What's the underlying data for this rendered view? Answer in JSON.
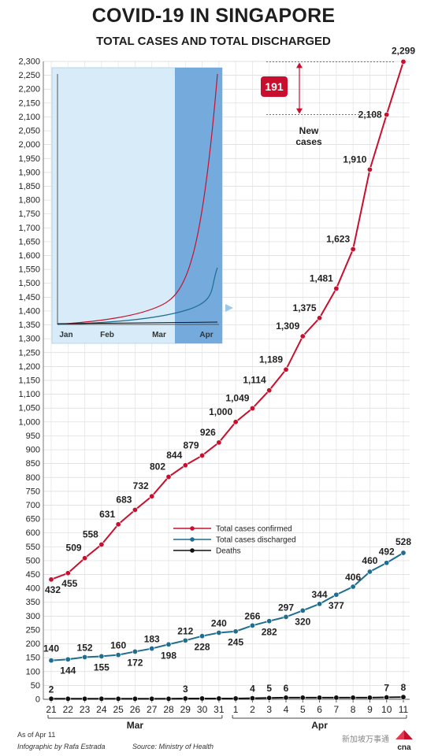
{
  "title": "COVID-19 IN SINGAPORE",
  "subtitle": "TOTAL CASES AND TOTAL DISCHARGED",
  "footer": {
    "as_of": "As of Apr 11",
    "infographic_by": "Infographic by Rafa Estrada",
    "source": "Source: Ministry of Health",
    "watermark": "新加坡万事通",
    "logo_text": "cna"
  },
  "callout": {
    "new_cases_value": "191",
    "new_cases_label_1": "New",
    "new_cases_label_2": "cases"
  },
  "colors": {
    "confirmed": "#c8102e",
    "discharged": "#1f6d8f",
    "deaths": "#111111",
    "inset_bg": "#d7ecf8",
    "inset_highlight": "#5b9bd5",
    "callout_box": "#c8102e"
  },
  "chart_data": {
    "type": "line",
    "title": "COVID-19 IN SINGAPORE",
    "subtitle": "TOTAL CASES AND TOTAL DISCHARGED",
    "x": [
      "21",
      "22",
      "23",
      "24",
      "25",
      "26",
      "27",
      "28",
      "29",
      "30",
      "31",
      "1",
      "2",
      "3",
      "4",
      "5",
      "6",
      "7",
      "8",
      "9",
      "10",
      "11"
    ],
    "month_groups": [
      {
        "label": "Mar",
        "from": "21",
        "to": "31"
      },
      {
        "label": "Apr",
        "from": "1",
        "to": "11"
      }
    ],
    "ylim": [
      0,
      2300
    ],
    "ystep": 50,
    "y_tick_labels": [
      "0",
      "50",
      "100",
      "150",
      "200",
      "250",
      "300",
      "350",
      "400",
      "450",
      "500",
      "550",
      "600",
      "650",
      "700",
      "750",
      "800",
      "850",
      "900",
      "950",
      "1,000",
      "1,050",
      "1,100",
      "1,150",
      "1,200",
      "1,250",
      "1,300",
      "1,350",
      "1,400",
      "1,450",
      "1,500",
      "1,550",
      "1,600",
      "1,650",
      "1,700",
      "1,750",
      "1,800",
      "1,850",
      "1,900",
      "1,950",
      "2,000",
      "2,050",
      "2,100",
      "2,150",
      "2,200",
      "2,250",
      "2,300"
    ],
    "grid": true,
    "legend_position": "center-right",
    "series": [
      {
        "name": "Total cases confirmed",
        "color": "#c8102e",
        "values": [
          432,
          455,
          509,
          558,
          631,
          683,
          732,
          802,
          844,
          879,
          926,
          1000,
          1049,
          1114,
          1189,
          1309,
          1375,
          1481,
          1623,
          1910,
          2108,
          2299
        ],
        "labels": [
          "432",
          "455",
          "509",
          "558",
          "631",
          "683",
          "732",
          "802",
          "844",
          "879",
          "926",
          "1,000",
          "1,049",
          "1,114",
          "1,189",
          "1,309",
          "1,375",
          "1,481",
          "1,623",
          "1,910",
          "2,108",
          "2,299"
        ]
      },
      {
        "name": "Total cases discharged",
        "color": "#1f6d8f",
        "values": [
          140,
          144,
          152,
          155,
          160,
          172,
          183,
          198,
          212,
          228,
          240,
          245,
          266,
          282,
          297,
          320,
          344,
          377,
          406,
          460,
          492,
          528
        ],
        "labels": [
          "140",
          "144",
          "152",
          "155",
          "160",
          "172",
          "183",
          "198",
          "212",
          "228",
          "240",
          "245",
          "266",
          "282",
          "297",
          "320",
          "344",
          "377",
          "406",
          "460",
          "492",
          "528"
        ]
      },
      {
        "name": "Deaths",
        "color": "#111111",
        "values": [
          2,
          2,
          2,
          2,
          2,
          2,
          2,
          2,
          3,
          3,
          3,
          3,
          4,
          5,
          6,
          6,
          6,
          6,
          6,
          6,
          7,
          8
        ],
        "labels": [
          "2",
          "",
          "",
          "",
          "",
          "",
          "",
          "",
          "3",
          "",
          "",
          "",
          "4",
          "5",
          "6",
          "",
          "",
          "",
          "",
          "",
          "7",
          "8"
        ]
      }
    ],
    "inset": {
      "x_labels": [
        "Jan",
        "Feb",
        "Mar",
        "Apr"
      ]
    }
  }
}
